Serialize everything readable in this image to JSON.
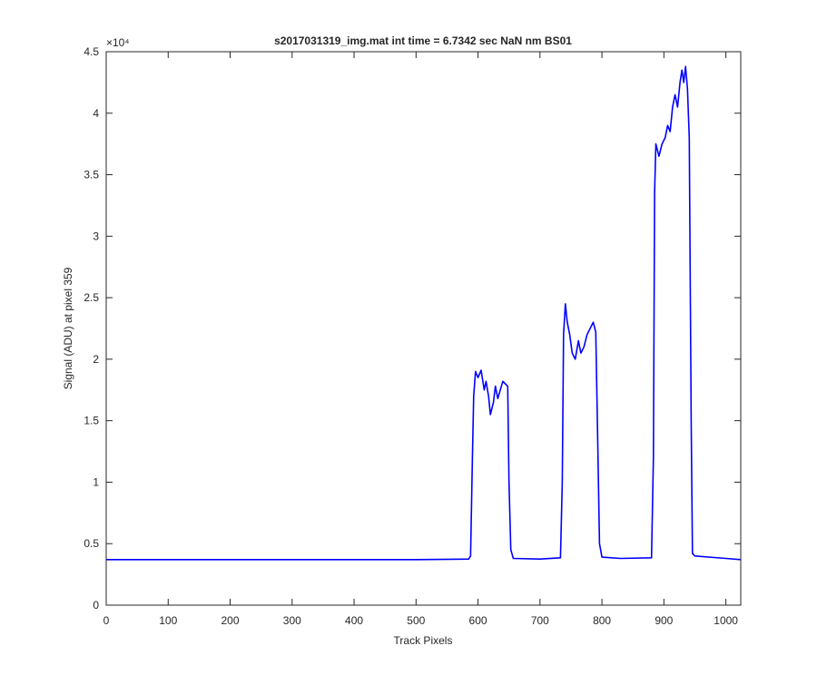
{
  "chart_data": {
    "type": "line",
    "title": "s2017031319_img.mat int time = 6.7342 sec  NaN nm BS01",
    "xlabel": "Track Pixels",
    "ylabel": "Signal (ADU) at pixel 359",
    "xlim": [
      0,
      1024
    ],
    "ylim": [
      0,
      45000
    ],
    "y_exponent_label": "×10⁴",
    "xticks": [
      0,
      100,
      200,
      300,
      400,
      500,
      600,
      700,
      800,
      900,
      1000
    ],
    "yticks": [
      0,
      5000,
      10000,
      15000,
      20000,
      25000,
      30000,
      35000,
      40000,
      45000
    ],
    "yticklabels": [
      "0",
      "0.5",
      "1",
      "1.5",
      "2",
      "2.5",
      "3",
      "3.5",
      "4",
      "4.5"
    ],
    "grid": false,
    "line_color": "#0000ff",
    "series": [
      {
        "points": [
          [
            0,
            3700
          ],
          [
            100,
            3700
          ],
          [
            200,
            3700
          ],
          [
            300,
            3700
          ],
          [
            400,
            3700
          ],
          [
            500,
            3700
          ],
          [
            585,
            3750
          ],
          [
            588,
            4000
          ],
          [
            591,
            12000
          ],
          [
            593,
            17000
          ],
          [
            596,
            19000
          ],
          [
            600,
            18500
          ],
          [
            605,
            19100
          ],
          [
            610,
            17500
          ],
          [
            613,
            18200
          ],
          [
            617,
            17000
          ],
          [
            620,
            15500
          ],
          [
            625,
            16500
          ],
          [
            628,
            17800
          ],
          [
            632,
            16800
          ],
          [
            636,
            17500
          ],
          [
            640,
            18200
          ],
          [
            644,
            18000
          ],
          [
            648,
            17800
          ],
          [
            650,
            10000
          ],
          [
            653,
            4500
          ],
          [
            657,
            3800
          ],
          [
            700,
            3750
          ],
          [
            733,
            3850
          ],
          [
            736,
            10000
          ],
          [
            738,
            22000
          ],
          [
            741,
            24500
          ],
          [
            744,
            23000
          ],
          [
            748,
            22000
          ],
          [
            752,
            20500
          ],
          [
            757,
            20000
          ],
          [
            762,
            21500
          ],
          [
            766,
            20500
          ],
          [
            771,
            21000
          ],
          [
            776,
            22000
          ],
          [
            781,
            22500
          ],
          [
            786,
            23000
          ],
          [
            790,
            22200
          ],
          [
            793,
            14000
          ],
          [
            796,
            5000
          ],
          [
            800,
            3900
          ],
          [
            830,
            3800
          ],
          [
            880,
            3850
          ],
          [
            883,
            12000
          ],
          [
            885,
            33500
          ],
          [
            887,
            37500
          ],
          [
            892,
            36500
          ],
          [
            897,
            37500
          ],
          [
            902,
            38000
          ],
          [
            906,
            39000
          ],
          [
            910,
            38500
          ],
          [
            914,
            40500
          ],
          [
            918,
            41500
          ],
          [
            922,
            40500
          ],
          [
            926,
            42500
          ],
          [
            929,
            43500
          ],
          [
            932,
            42500
          ],
          [
            935,
            43800
          ],
          [
            938,
            42000
          ],
          [
            941,
            38000
          ],
          [
            944,
            15000
          ],
          [
            946,
            4200
          ],
          [
            950,
            4000
          ],
          [
            1000,
            3800
          ],
          [
            1024,
            3700
          ]
        ]
      }
    ]
  }
}
